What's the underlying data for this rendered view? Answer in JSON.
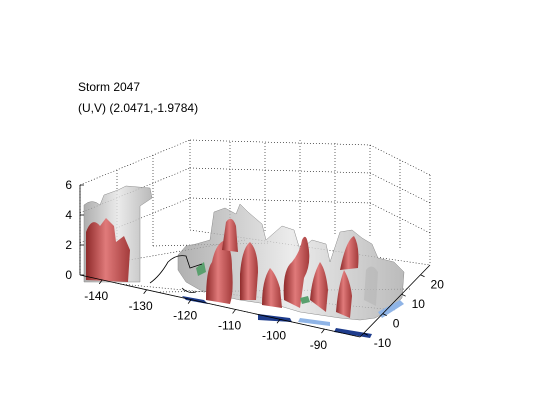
{
  "chart_data": {
    "type": "3d-isosurface",
    "title_lines": [
      "Storm 2047",
      "(U,V) (2.0471,-1.9784)"
    ],
    "x_ticks": [
      "-140",
      "-130",
      "-120",
      "-110",
      "-100",
      "-90"
    ],
    "y_ticks": [
      "-10",
      "0",
      "10",
      "20"
    ],
    "z_ticks": [
      "0",
      "2",
      "4",
      "6"
    ],
    "xlim": [
      -145,
      -82
    ],
    "ylim": [
      -12,
      25
    ],
    "zlim": [
      0,
      7
    ],
    "grid": true,
    "colors": {
      "outer_surface": "#c8c8c8",
      "inner_surface": "#c84e4e",
      "floor_dark": "#1e3c8c",
      "floor_light": "#8fb4e6",
      "floor_green": "#5aa06e"
    }
  }
}
